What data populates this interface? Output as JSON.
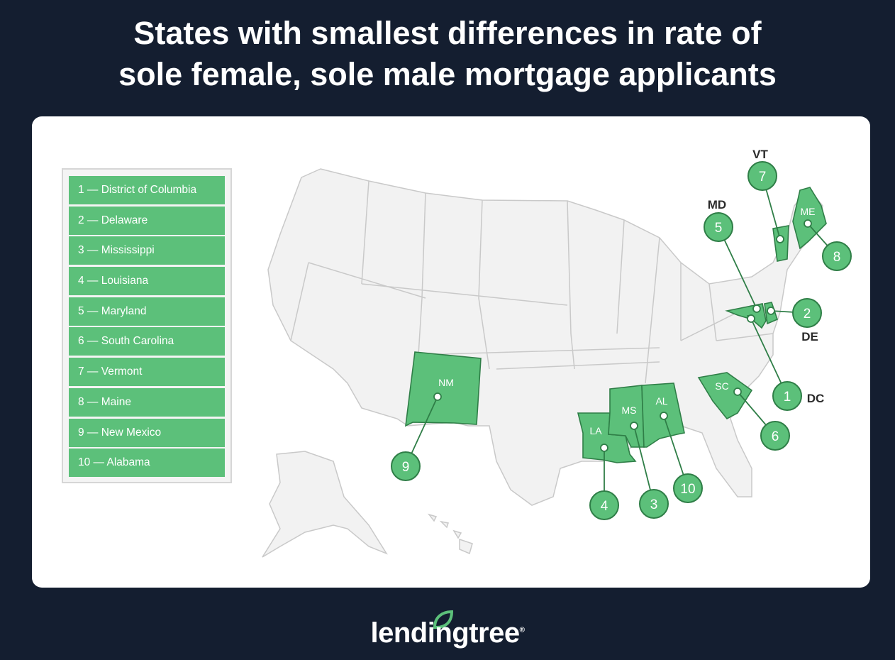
{
  "title": {
    "line1": "States with smallest differences in rate of",
    "line2": "sole female, sole male mortgage applicants"
  },
  "legend": [
    "1 — District of Columbia",
    "2 — Delaware",
    "3 — Mississippi",
    "4 — Louisiana",
    "5 — Maryland",
    "6 — South Carolina",
    "7 — Vermont",
    "8 — Maine",
    "9 — New Mexico",
    "10 — Alabama"
  ],
  "map": {
    "highlight_color": "#5cc07a",
    "outline_color": "#2f7e47",
    "base_color": "#f2f2f2",
    "markers": [
      {
        "rank": "1",
        "abbr": "DC"
      },
      {
        "rank": "2",
        "abbr": "DE"
      },
      {
        "rank": "3",
        "abbr": "MS"
      },
      {
        "rank": "4",
        "abbr": "LA"
      },
      {
        "rank": "5",
        "abbr": "MD"
      },
      {
        "rank": "6",
        "abbr": "SC"
      },
      {
        "rank": "7",
        "abbr": "VT"
      },
      {
        "rank": "8",
        "abbr": "ME"
      },
      {
        "rank": "9",
        "abbr": "NM"
      },
      {
        "rank": "10",
        "abbr": "AL"
      }
    ]
  },
  "footer": {
    "brand": "lendingtree",
    "registered": "®",
    "logo_icon": "leaf-icon"
  },
  "colors": {
    "background": "#141e30",
    "card": "#ffffff"
  }
}
